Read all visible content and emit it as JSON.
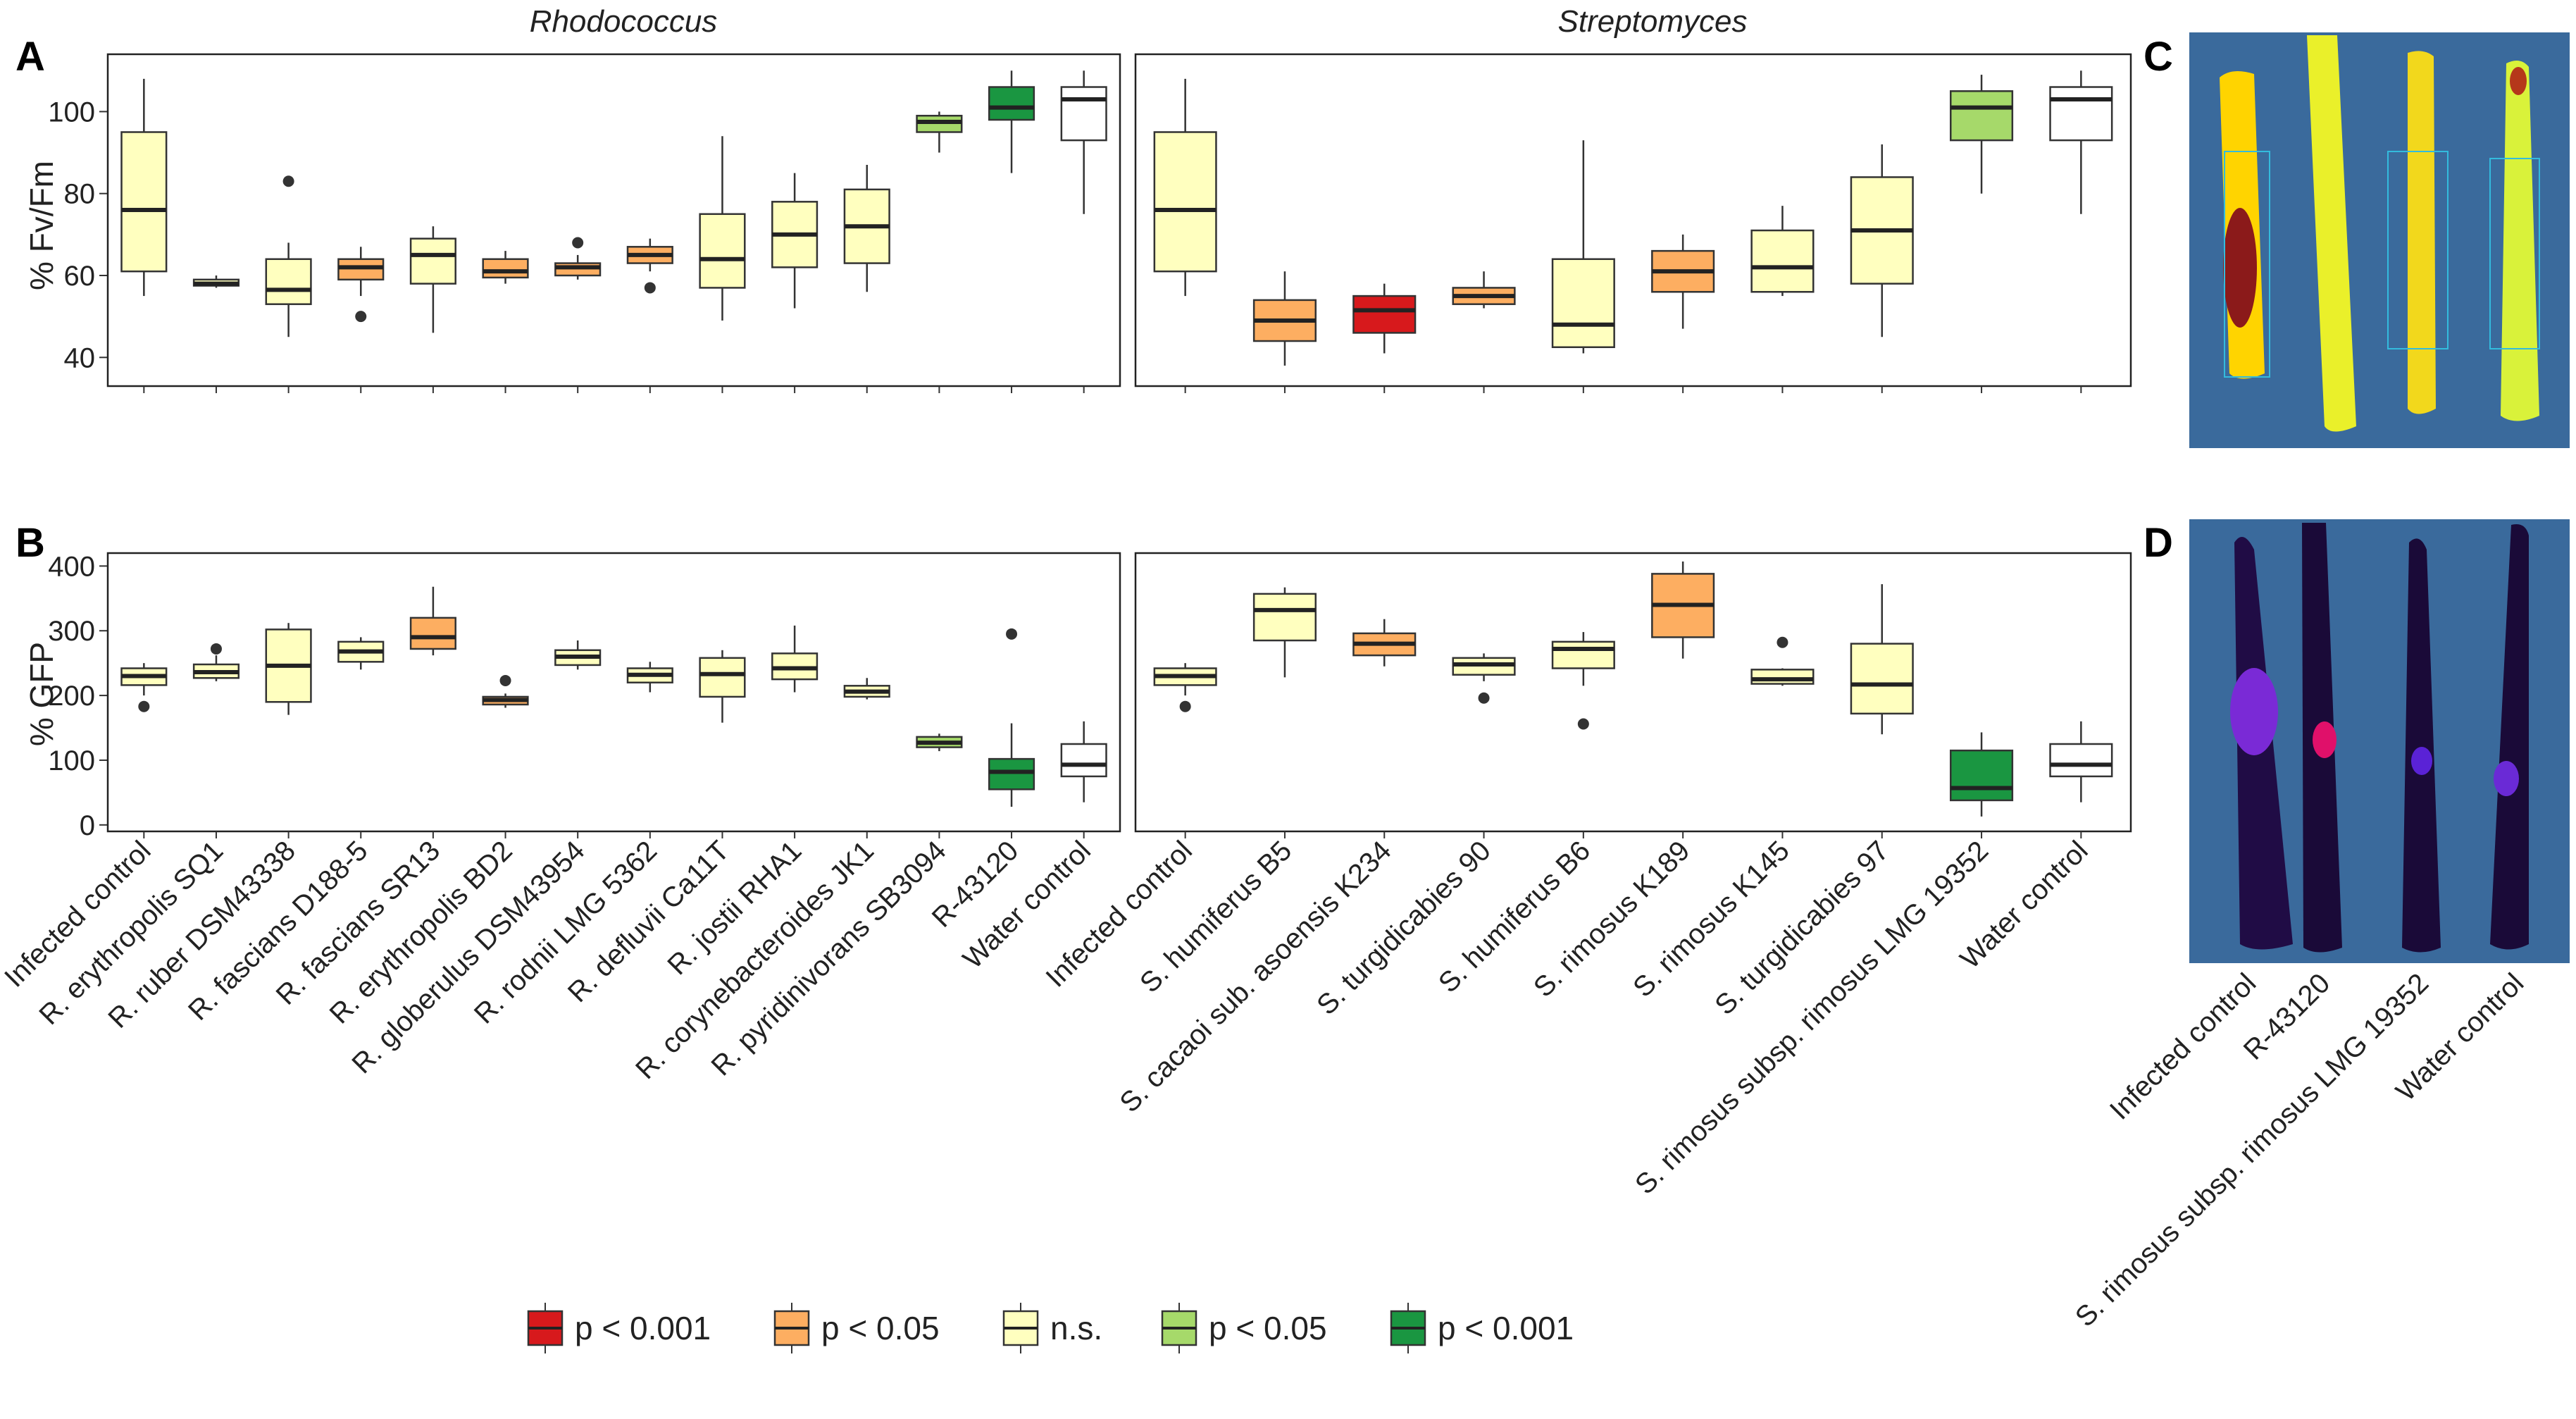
{
  "panels": {
    "a": "A",
    "b": "B",
    "c": "C",
    "d": "D"
  },
  "strip_titles": [
    "Rhodococcus",
    "Streptomyces"
  ],
  "colors": {
    "red": "#d7191c",
    "orange": "#fdae61",
    "yellow": "#ffffbf",
    "lightgreen": "#a6d96a",
    "darkgreen": "#1a9641",
    "white": "#ffffff"
  },
  "legend": {
    "title": "",
    "items": [
      {
        "label": "p < 0.001",
        "color": "red"
      },
      {
        "label": "p < 0.05",
        "color": "orange"
      },
      {
        "label": "n.s.",
        "color": "yellow"
      },
      {
        "label": "p < 0.05",
        "color": "lightgreen"
      },
      {
        "label": "p < 0.001",
        "color": "darkgreen"
      }
    ]
  },
  "leaf_images": {
    "c": {
      "description_icon": "fv-fm-leaf-image-icon"
    },
    "d": {
      "description_icon": "gfp-leaf-image-icon"
    },
    "labels": [
      "Infected control",
      "R-43120",
      "S. rimosus subsp. rimosus LMG 19352",
      "Water control"
    ]
  },
  "chart_data": [
    {
      "type": "box",
      "id": "A",
      "ylabel": "% Fv/Fm",
      "ylim": [
        33,
        114
      ],
      "yticks": [
        40,
        60,
        80,
        100
      ],
      "facets": [
        {
          "title": "Rhodococcus",
          "categories": [
            "Infected control",
            "R. erythropolis SQ1",
            "R. ruber DSM43338",
            "R. fascians D188-5",
            "R. fascians SR13",
            "R. erythropolis BD2",
            "R. globerulus DSM43954",
            "R. rodnii LMG 5362",
            "R. defluvii Ca11T",
            "R. jostii RHA1",
            "R. corynebacteroides JK1",
            "R. pyridinivorans SB3094",
            "R-43120",
            "Water control"
          ],
          "boxes": [
            {
              "q1": 61,
              "med": 76,
              "q3": 95,
              "lo": 55,
              "hi": 108,
              "out": [],
              "color": "yellow"
            },
            {
              "q1": 57.5,
              "med": 58,
              "q3": 59,
              "lo": 57,
              "hi": 60,
              "out": [],
              "color": "yellow"
            },
            {
              "q1": 53,
              "med": 56.5,
              "q3": 64,
              "lo": 45,
              "hi": 68,
              "out": [
                83
              ],
              "color": "yellow"
            },
            {
              "q1": 59,
              "med": 62,
              "q3": 64,
              "lo": 55,
              "hi": 67,
              "out": [
                50
              ],
              "color": "orange"
            },
            {
              "q1": 58,
              "med": 65,
              "q3": 69,
              "lo": 46,
              "hi": 72,
              "out": [],
              "color": "yellow"
            },
            {
              "q1": 59.5,
              "med": 61,
              "q3": 64,
              "lo": 58,
              "hi": 66,
              "out": [],
              "color": "orange"
            },
            {
              "q1": 60,
              "med": 62,
              "q3": 63,
              "lo": 59,
              "hi": 65,
              "out": [
                68
              ],
              "color": "orange"
            },
            {
              "q1": 63,
              "med": 65,
              "q3": 67,
              "lo": 61,
              "hi": 69,
              "out": [
                57
              ],
              "color": "orange"
            },
            {
              "q1": 57,
              "med": 64,
              "q3": 75,
              "lo": 49,
              "hi": 94,
              "out": [],
              "color": "yellow"
            },
            {
              "q1": 62,
              "med": 70,
              "q3": 78,
              "lo": 52,
              "hi": 85,
              "out": [],
              "color": "yellow"
            },
            {
              "q1": 63,
              "med": 72,
              "q3": 81,
              "lo": 56,
              "hi": 87,
              "out": [],
              "color": "yellow"
            },
            {
              "q1": 95,
              "med": 97.5,
              "q3": 99,
              "lo": 90,
              "hi": 100,
              "out": [],
              "color": "lightgreen"
            },
            {
              "q1": 98,
              "med": 101,
              "q3": 106,
              "lo": 85,
              "hi": 110,
              "out": [],
              "color": "darkgreen"
            },
            {
              "q1": 93,
              "med": 103,
              "q3": 106,
              "lo": 75,
              "hi": 110,
              "out": [],
              "color": "white"
            }
          ]
        },
        {
          "title": "Streptomyces",
          "categories": [
            "Infected control",
            "S. humiferus B5",
            "S. cacaoi sub. asoensis K234",
            "S. turgidicabies 90",
            "S. humiferus B6",
            "S. rimosus K189",
            "S. rimosus K145",
            "S. turgidicabies 97",
            "S. rimosus subsp. rimosus LMG 19352",
            "Water control"
          ],
          "boxes": [
            {
              "q1": 61,
              "med": 76,
              "q3": 95,
              "lo": 55,
              "hi": 108,
              "out": [],
              "color": "yellow"
            },
            {
              "q1": 44,
              "med": 49,
              "q3": 54,
              "lo": 38,
              "hi": 61,
              "out": [],
              "color": "orange"
            },
            {
              "q1": 46,
              "med": 51.5,
              "q3": 55,
              "lo": 41,
              "hi": 58,
              "out": [],
              "color": "red"
            },
            {
              "q1": 53,
              "med": 55,
              "q3": 57,
              "lo": 52,
              "hi": 61,
              "out": [],
              "color": "orange"
            },
            {
              "q1": 42.5,
              "med": 48,
              "q3": 64,
              "lo": 41,
              "hi": 93,
              "out": [],
              "color": "yellow"
            },
            {
              "q1": 56,
              "med": 61,
              "q3": 66,
              "lo": 47,
              "hi": 70,
              "out": [],
              "color": "orange"
            },
            {
              "q1": 56,
              "med": 62,
              "q3": 71,
              "lo": 55,
              "hi": 77,
              "out": [],
              "color": "yellow"
            },
            {
              "q1": 58,
              "med": 71,
              "q3": 84,
              "lo": 45,
              "hi": 92,
              "out": [],
              "color": "yellow"
            },
            {
              "q1": 93,
              "med": 101,
              "q3": 105,
              "lo": 80,
              "hi": 109,
              "out": [],
              "color": "lightgreen"
            },
            {
              "q1": 93,
              "med": 103,
              "q3": 106,
              "lo": 75,
              "hi": 110,
              "out": [],
              "color": "white"
            }
          ]
        }
      ]
    },
    {
      "type": "box",
      "id": "B",
      "ylabel": "% GFP",
      "ylim": [
        -10,
        420
      ],
      "yticks": [
        0,
        100,
        200,
        300,
        400
      ],
      "facets": [
        {
          "title": "Rhodococcus",
          "boxes": [
            {
              "q1": 216,
              "med": 230,
              "q3": 242,
              "lo": 200,
              "hi": 250,
              "out": [
                183
              ],
              "color": "yellow"
            },
            {
              "q1": 227,
              "med": 236,
              "q3": 248,
              "lo": 222,
              "hi": 262,
              "out": [
                272
              ],
              "color": "yellow"
            },
            {
              "q1": 190,
              "med": 246,
              "q3": 302,
              "lo": 170,
              "hi": 312,
              "out": [],
              "color": "yellow"
            },
            {
              "q1": 252,
              "med": 268,
              "q3": 283,
              "lo": 240,
              "hi": 290,
              "out": [],
              "color": "yellow"
            },
            {
              "q1": 272,
              "med": 290,
              "q3": 320,
              "lo": 262,
              "hi": 368,
              "out": [],
              "color": "orange"
            },
            {
              "q1": 186,
              "med": 193,
              "q3": 198,
              "lo": 181,
              "hi": 203,
              "out": [
                223
              ],
              "color": "orange"
            },
            {
              "q1": 247,
              "med": 260,
              "q3": 270,
              "lo": 240,
              "hi": 285,
              "out": [],
              "color": "yellow"
            },
            {
              "q1": 220,
              "med": 232,
              "q3": 242,
              "lo": 205,
              "hi": 252,
              "out": [],
              "color": "yellow"
            },
            {
              "q1": 198,
              "med": 233,
              "q3": 258,
              "lo": 158,
              "hi": 270,
              "out": [],
              "color": "yellow"
            },
            {
              "q1": 225,
              "med": 242,
              "q3": 265,
              "lo": 205,
              "hi": 308,
              "out": [],
              "color": "yellow"
            },
            {
              "q1": 198,
              "med": 206,
              "q3": 215,
              "lo": 194,
              "hi": 227,
              "out": [],
              "color": "yellow"
            },
            {
              "q1": 120,
              "med": 127,
              "q3": 136,
              "lo": 114,
              "hi": 141,
              "out": [],
              "color": "lightgreen"
            },
            {
              "q1": 55,
              "med": 82,
              "q3": 102,
              "lo": 28,
              "hi": 157,
              "out": [
                295
              ],
              "color": "darkgreen"
            },
            {
              "q1": 75,
              "med": 93,
              "q3": 125,
              "lo": 35,
              "hi": 160,
              "out": [],
              "color": "white"
            }
          ]
        },
        {
          "title": "Streptomyces",
          "boxes": [
            {
              "q1": 216,
              "med": 230,
              "q3": 242,
              "lo": 200,
              "hi": 250,
              "out": [
                183
              ],
              "color": "yellow"
            },
            {
              "q1": 285,
              "med": 332,
              "q3": 357,
              "lo": 228,
              "hi": 367,
              "out": [],
              "color": "yellow"
            },
            {
              "q1": 262,
              "med": 280,
              "q3": 296,
              "lo": 245,
              "hi": 318,
              "out": [],
              "color": "orange"
            },
            {
              "q1": 232,
              "med": 248,
              "q3": 258,
              "lo": 222,
              "hi": 265,
              "out": [
                196
              ],
              "color": "yellow"
            },
            {
              "q1": 242,
              "med": 272,
              "q3": 283,
              "lo": 215,
              "hi": 298,
              "out": [
                156
              ],
              "color": "yellow"
            },
            {
              "q1": 290,
              "med": 340,
              "q3": 388,
              "lo": 257,
              "hi": 407,
              "out": [],
              "color": "orange"
            },
            {
              "q1": 218,
              "med": 225,
              "q3": 240,
              "lo": 215,
              "hi": 242,
              "out": [
                282
              ],
              "color": "yellow"
            },
            {
              "q1": 172,
              "med": 217,
              "q3": 280,
              "lo": 140,
              "hi": 372,
              "out": [],
              "color": "yellow"
            },
            {
              "q1": 38,
              "med": 57,
              "q3": 115,
              "lo": 13,
              "hi": 143,
              "out": [],
              "color": "darkgreen"
            },
            {
              "q1": 75,
              "med": 93,
              "q3": 125,
              "lo": 35,
              "hi": 160,
              "out": [],
              "color": "white"
            }
          ]
        }
      ]
    }
  ]
}
